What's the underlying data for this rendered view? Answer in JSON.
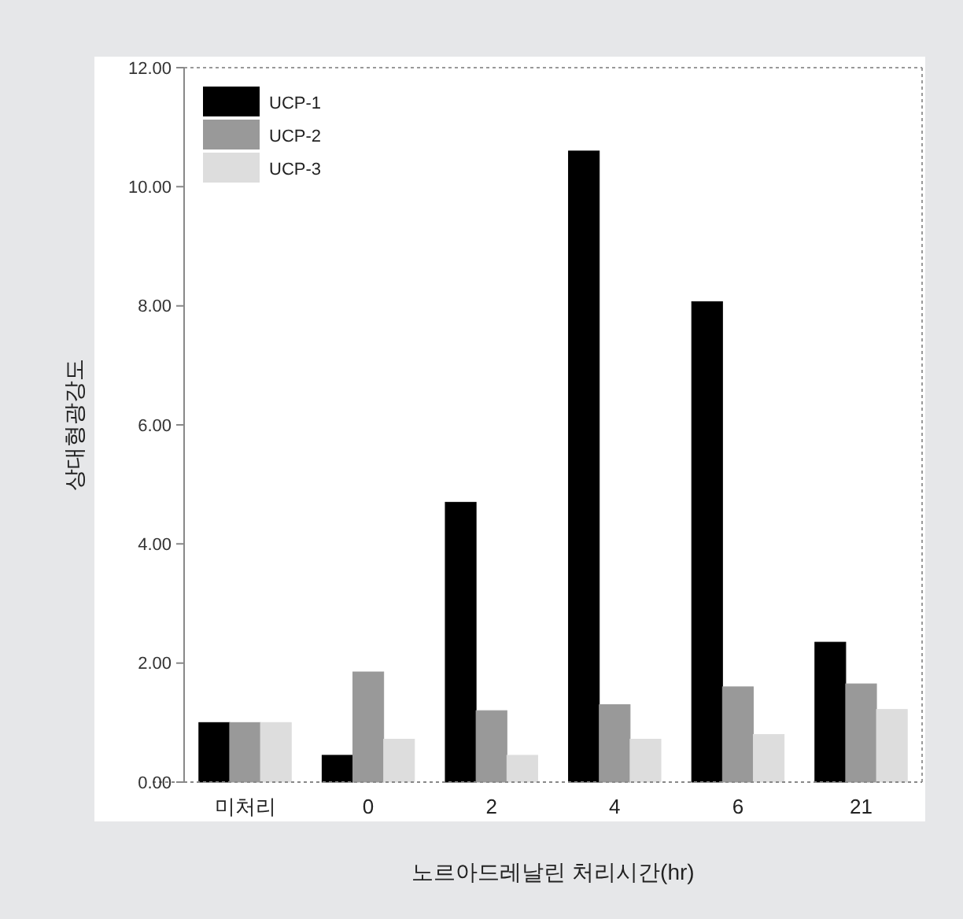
{
  "chart_data": {
    "type": "bar",
    "xlabel": "노르아드레날린 처리시간(hr)",
    "ylabel": "상대형광강도",
    "categories": [
      "미처리",
      "0",
      "2",
      "4",
      "6",
      "21"
    ],
    "series": [
      {
        "name": "UCP-1",
        "color": "#000000",
        "values": [
          1.0,
          0.45,
          4.7,
          10.6,
          8.07,
          2.35
        ]
      },
      {
        "name": "UCP-2",
        "color": "#999999",
        "values": [
          1.0,
          1.85,
          1.2,
          1.3,
          1.6,
          1.65
        ]
      },
      {
        "name": "UCP-3",
        "color": "#dddddd",
        "values": [
          1.0,
          0.72,
          0.45,
          0.72,
          0.8,
          1.22
        ]
      }
    ],
    "ylim": [
      0,
      12
    ],
    "yticks": [
      {
        "value": 0,
        "label": "0.00"
      },
      {
        "value": 2,
        "label": "2.00"
      },
      {
        "value": 4,
        "label": "4.00"
      },
      {
        "value": 6,
        "label": "6.00"
      },
      {
        "value": 8,
        "label": "8.00"
      },
      {
        "value": 10,
        "label": "10.00"
      },
      {
        "value": 12,
        "label": "12.00"
      }
    ],
    "grid": false,
    "legend": "top left"
  }
}
